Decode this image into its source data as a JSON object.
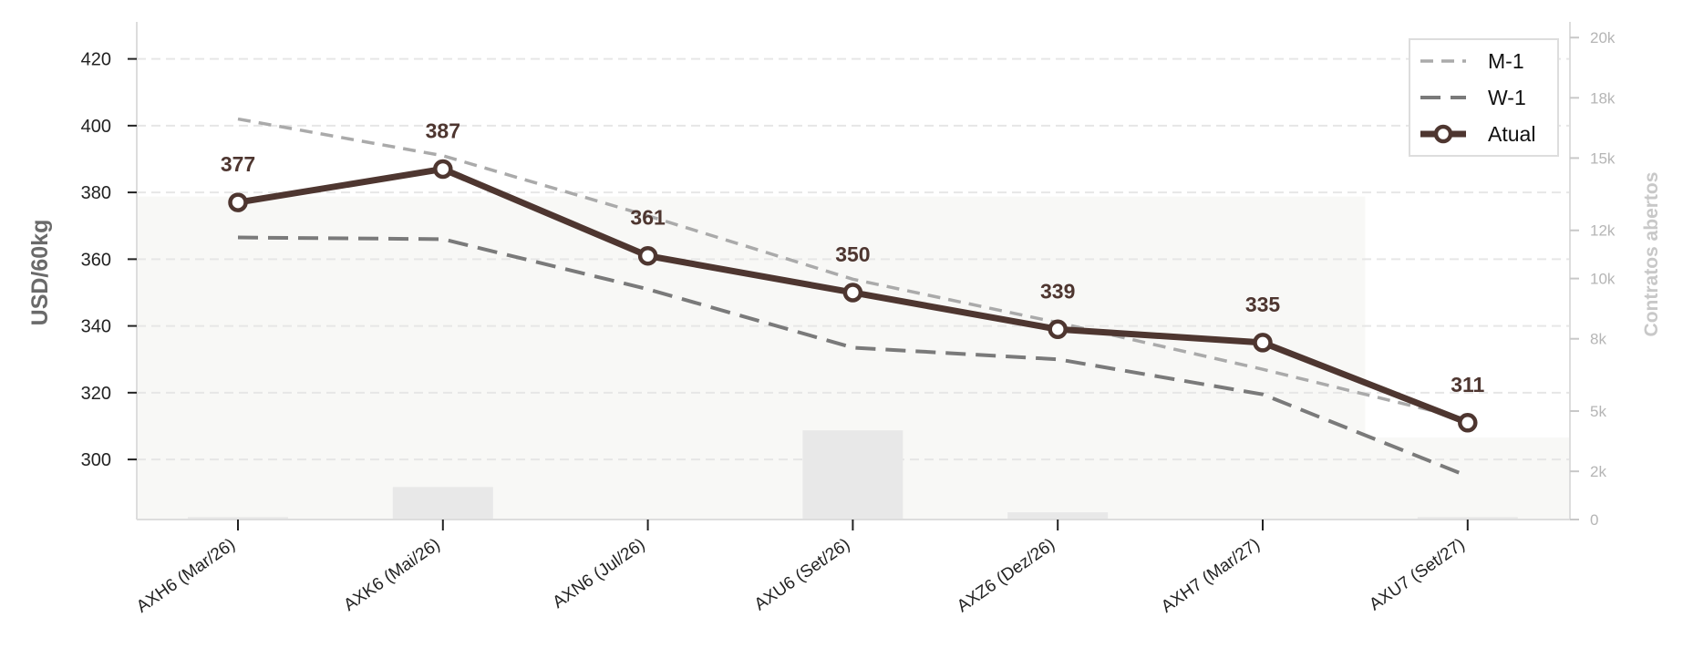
{
  "chart_data": {
    "type": "line",
    "title": "",
    "xlabel": "",
    "ylabel": "USD/60kg",
    "y2label": "Contratos abertos",
    "categories": [
      "AXH6 (Mar/26)",
      "AXK6 (Mai/26)",
      "AXN6 (Jul/26)",
      "AXU6 (Set/26)",
      "AXZ6 (Dez/26)",
      "AXH7 (Mar/27)",
      "AXU7 (Set/27)"
    ],
    "ylim": [
      282,
      430
    ],
    "yticks": [
      300,
      320,
      340,
      360,
      380,
      400,
      420
    ],
    "y2lim": [
      0,
      20500
    ],
    "y2ticks": [
      0,
      2000,
      4000,
      6000,
      8000,
      10000,
      12000,
      14000,
      16000,
      18000,
      20000
    ],
    "y2ticklabels": [
      "0",
      "2k",
      "5k",
      "8k",
      "10k",
      "12k",
      "15k",
      "18k",
      "20k"
    ],
    "y2ticks_shown": [
      0,
      2000,
      4500,
      7500,
      10000,
      12000,
      15000,
      17500,
      20000
    ],
    "series": [
      {
        "name": "M-1",
        "style": "dashed",
        "color": "#aaaaaa",
        "values": [
          402,
          391,
          373,
          354,
          341,
          327,
          312
        ]
      },
      {
        "name": "W-1",
        "style": "dashed",
        "color": "#7a7a7a",
        "values": [
          366.5,
          366,
          351,
          333.5,
          330,
          319.5,
          295
        ]
      },
      {
        "name": "Atual",
        "style": "solid-markers",
        "color": "#4e3630",
        "values": [
          377,
          387,
          361,
          350,
          339,
          335,
          311
        ],
        "labels": [
          "377",
          "387",
          "361",
          "350",
          "339",
          "335",
          "311"
        ]
      }
    ],
    "open_interest_bars": {
      "values": [
        100,
        1350,
        0,
        3700,
        300,
        0,
        100
      ]
    },
    "open_interest_band": {
      "values": [
        13400,
        13400,
        13400,
        13400,
        13400,
        13400,
        3400
      ]
    },
    "grid": "horizontal dashed",
    "legend": "top-right"
  },
  "colors": {
    "atual": "#4e3630",
    "m1": "#aaaaaa",
    "w1": "#7a7a7a",
    "bars": "#e8e8e8",
    "band": "#f8f8f6",
    "grid": "#e6e6e6"
  }
}
